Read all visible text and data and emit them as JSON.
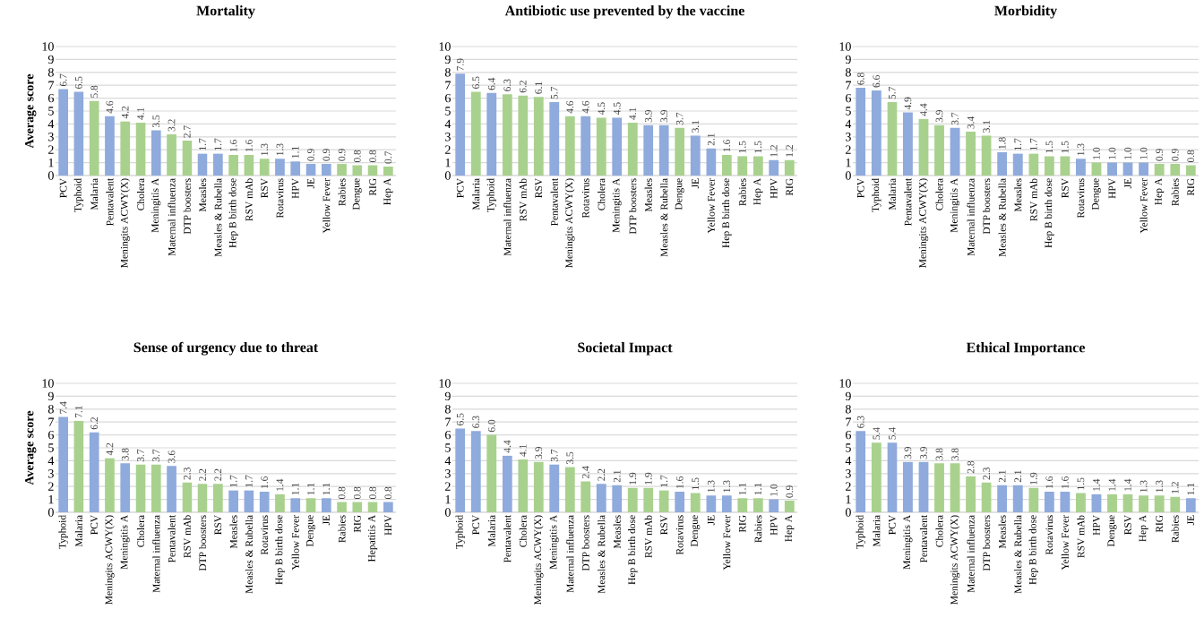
{
  "chart_data": [
    {
      "type": "bar",
      "title": "Mortality",
      "ylabel": "Average score",
      "ylim": [
        0,
        10
      ],
      "yticks": [
        0,
        1,
        2,
        3,
        4,
        5,
        6,
        7,
        8,
        9,
        10
      ],
      "grid": "y",
      "categories": [
        "PCV",
        "Typhoid",
        "Malaria",
        "Pentavalent",
        "Meningits ACWY(X)",
        "Cholera",
        "Meningitis A",
        "Maternal influenza",
        "DTP boosters",
        "Measles",
        "Measles & Rubella",
        "Hep B birth dose",
        "RSV mAb",
        "RSV",
        "Rotavirus",
        "HPV",
        "JE",
        "Yellow Fever",
        "Rabies",
        "Dengue",
        "RIG",
        "Hep A"
      ],
      "values": [
        6.7,
        6.5,
        5.8,
        4.6,
        4.2,
        4.1,
        3.5,
        3.2,
        2.7,
        1.7,
        1.7,
        1.6,
        1.6,
        1.3,
        1.3,
        1.1,
        0.9,
        0.9,
        0.9,
        0.8,
        0.8,
        0.7
      ],
      "value_labels": [
        "6.7",
        "6.5",
        "5.8",
        "4.6",
        "4.2",
        "4.1",
        "3.5",
        "3.2",
        "2.7",
        "1.7",
        "1.7",
        "1.6",
        "1.6",
        "1.3",
        "1.3",
        "1.1",
        "0.9",
        "0.9",
        "0.9",
        "0.8",
        "0.8",
        "0.7"
      ],
      "colors": [
        "#8faadc",
        "#8faadc",
        "#a9d18e",
        "#8faadc",
        "#a9d18e",
        "#a9d18e",
        "#8faadc",
        "#a9d18e",
        "#a9d18e",
        "#8faadc",
        "#8faadc",
        "#a9d18e",
        "#a9d18e",
        "#a9d18e",
        "#8faadc",
        "#8faadc",
        "#8faadc",
        "#8faadc",
        "#a9d18e",
        "#a9d18e",
        "#a9d18e",
        "#a9d18e"
      ]
    },
    {
      "type": "bar",
      "title": "Antibiotic use prevented by the vaccine",
      "ylim": [
        0,
        10
      ],
      "yticks": [
        0,
        1,
        2,
        3,
        4,
        5,
        6,
        7,
        8,
        9,
        10
      ],
      "grid": "y",
      "categories": [
        "PCV",
        "Malaria",
        "Typhoid",
        "Maternal influenza",
        "RSV mAb",
        "RSV",
        "Pentavalent",
        "Meningits ACWY(X)",
        "Rotavirus",
        "Cholera",
        "Meningitis A",
        "DTP boosters",
        "Measles",
        "Measles & Rubella",
        "Dengue",
        "JE",
        "Yellow Fever",
        "Hep B birth dose",
        "Rabies",
        "Hep A",
        "HPV",
        "RIG"
      ],
      "values": [
        7.9,
        6.5,
        6.4,
        6.3,
        6.2,
        6.1,
        5.7,
        4.6,
        4.6,
        4.5,
        4.5,
        4.1,
        3.9,
        3.9,
        3.7,
        3.1,
        2.1,
        1.6,
        1.5,
        1.5,
        1.2,
        1.2
      ],
      "value_labels": [
        "7.9",
        "6.5",
        "6.4",
        "6.3",
        "6.2",
        "6.1",
        "5.7",
        "4.6",
        "4.6",
        "4.5",
        "4.5",
        "4.1",
        "3.9",
        "3.9",
        "3.7",
        "3.1",
        "2.1",
        "1.6",
        "1.5",
        "1.5",
        "1.2",
        "1.2"
      ],
      "colors": [
        "#8faadc",
        "#a9d18e",
        "#8faadc",
        "#a9d18e",
        "#a9d18e",
        "#a9d18e",
        "#8faadc",
        "#a9d18e",
        "#8faadc",
        "#a9d18e",
        "#8faadc",
        "#a9d18e",
        "#8faadc",
        "#8faadc",
        "#a9d18e",
        "#8faadc",
        "#8faadc",
        "#a9d18e",
        "#a9d18e",
        "#a9d18e",
        "#8faadc",
        "#a9d18e"
      ]
    },
    {
      "type": "bar",
      "title": "Morbidity",
      "ylim": [
        0,
        10
      ],
      "yticks": [
        0,
        1,
        2,
        3,
        4,
        5,
        6,
        7,
        8,
        9,
        10
      ],
      "grid": "y",
      "categories": [
        "PCV",
        "Typhoid",
        "Malaria",
        "Pentavalent",
        "Meningits ACWY(X)",
        "Cholera",
        "Meningitis A",
        "Maternal influenza",
        "DTP boosters",
        "Measles & Rubella",
        "Measles",
        "RSV mAb",
        "Hep B birth dose",
        "RSV",
        "Rotavirus",
        "Dengue",
        "HPV",
        "JE",
        "Yellow Fever",
        "Hep A",
        "Rabies",
        "RIG"
      ],
      "values": [
        6.8,
        6.6,
        5.7,
        4.9,
        4.4,
        3.9,
        3.7,
        3.4,
        3.1,
        1.8,
        1.7,
        1.7,
        1.5,
        1.5,
        1.3,
        1.0,
        1.0,
        1.0,
        1.0,
        0.9,
        0.9,
        0.8
      ],
      "value_labels": [
        "6.8",
        "6.6",
        "5.7",
        "4.9",
        "4.4",
        "3.9",
        "3.7",
        "3.4",
        "3.1",
        "1.8",
        "1.7",
        "1.7",
        "1.5",
        "1.5",
        "1.3",
        "1.0",
        "1.0",
        "1.0",
        "1.0",
        "0.9",
        "0.9",
        "0.8"
      ],
      "colors": [
        "#8faadc",
        "#8faadc",
        "#a9d18e",
        "#8faadc",
        "#a9d18e",
        "#a9d18e",
        "#8faadc",
        "#a9d18e",
        "#a9d18e",
        "#8faadc",
        "#8faadc",
        "#a9d18e",
        "#a9d18e",
        "#a9d18e",
        "#8faadc",
        "#a9d18e",
        "#8faadc",
        "#8faadc",
        "#8faadc",
        "#a9d18e",
        "#a9d18e",
        "#a9d18e"
      ]
    },
    {
      "type": "bar",
      "title": "Sense of urgency due to threat",
      "ylabel": "Average score",
      "ylim": [
        0,
        10
      ],
      "yticks": [
        0,
        1,
        2,
        3,
        4,
        5,
        6,
        7,
        8,
        9,
        10
      ],
      "grid": "y",
      "categories": [
        "Typhoid",
        "Malaria",
        "PCV",
        "Meningits ACWY(X)",
        "Meningitis A",
        "Cholera",
        "Maternal influenza",
        "Pentavalent",
        "RSV mAb",
        "DTP boosters",
        "RSV",
        "Measles",
        "Measles & Rubella",
        "Rotavirus",
        "Hep B birth dose",
        "Yellow Fever",
        "Dengue",
        "JE",
        "Rabies",
        "RIG",
        "Hepatitis A",
        "HPV"
      ],
      "values": [
        7.4,
        7.1,
        6.2,
        4.2,
        3.8,
        3.7,
        3.7,
        3.6,
        2.3,
        2.2,
        2.2,
        1.7,
        1.7,
        1.6,
        1.4,
        1.1,
        1.1,
        1.1,
        0.8,
        0.8,
        0.8,
        0.8
      ],
      "value_labels": [
        "7.4",
        "7.1",
        "6.2",
        "4.2",
        "3.8",
        "3.7",
        "3.7",
        "3.6",
        "2.3",
        "2.2",
        "2.2",
        "1.7",
        "1.7",
        "1.6",
        "1.4",
        "1.1",
        "1.1",
        "1.1",
        "0.8",
        "0.8",
        "0.8",
        "0.8"
      ],
      "colors": [
        "#8faadc",
        "#a9d18e",
        "#8faadc",
        "#a9d18e",
        "#8faadc",
        "#a9d18e",
        "#a9d18e",
        "#8faadc",
        "#a9d18e",
        "#a9d18e",
        "#a9d18e",
        "#8faadc",
        "#8faadc",
        "#8faadc",
        "#a9d18e",
        "#8faadc",
        "#a9d18e",
        "#8faadc",
        "#a9d18e",
        "#a9d18e",
        "#a9d18e",
        "#8faadc"
      ]
    },
    {
      "type": "bar",
      "title": "Societal Impact",
      "ylim": [
        0,
        10
      ],
      "yticks": [
        0,
        1,
        2,
        3,
        4,
        5,
        6,
        7,
        8,
        9,
        10
      ],
      "grid": "y",
      "categories": [
        "Typhoid",
        "PCV",
        "Malaria",
        "Pentavalent",
        "Cholera",
        "Meningits ACWY(X)",
        "Meningitis A",
        "Maternal influenza",
        "DTP boosters",
        "Measles & Rubella",
        "Measles",
        "Hep B birth dose",
        "RSV mAb",
        "RSV",
        "Rotavirus",
        "Dengue",
        "JE",
        "Yellow Fever",
        "RIG",
        "Rabies",
        "HPV",
        "Hep A"
      ],
      "values": [
        6.5,
        6.3,
        6.0,
        4.4,
        4.1,
        3.9,
        3.7,
        3.5,
        2.4,
        2.2,
        2.1,
        1.9,
        1.9,
        1.7,
        1.6,
        1.5,
        1.3,
        1.3,
        1.1,
        1.1,
        1.0,
        0.9
      ],
      "value_labels": [
        "6.5",
        "6.3",
        "6.0",
        "4.4",
        "4.1",
        "3.9",
        "3.7",
        "3.5",
        "2.4",
        "2.2",
        "2.1",
        "1.9",
        "1.9",
        "1.7",
        "1.6",
        "1.5",
        "1.3",
        "1.3",
        "1.1",
        "1.1",
        "1.0",
        "0.9"
      ],
      "colors": [
        "#8faadc",
        "#8faadc",
        "#a9d18e",
        "#8faadc",
        "#a9d18e",
        "#a9d18e",
        "#8faadc",
        "#a9d18e",
        "#a9d18e",
        "#8faadc",
        "#8faadc",
        "#a9d18e",
        "#a9d18e",
        "#a9d18e",
        "#8faadc",
        "#a9d18e",
        "#8faadc",
        "#8faadc",
        "#a9d18e",
        "#a9d18e",
        "#8faadc",
        "#a9d18e"
      ]
    },
    {
      "type": "bar",
      "title": "Ethical Importance",
      "ylim": [
        0,
        10
      ],
      "yticks": [
        0,
        1,
        2,
        3,
        4,
        5,
        6,
        7,
        8,
        9,
        10
      ],
      "grid": "y",
      "categories": [
        "Typhoid",
        "Malaria",
        "PCV",
        "Meningitis A",
        "Pentavalent",
        "Cholera",
        "Meningits ACWY(X)",
        "Maternal influenza",
        "DTP boosters",
        "Measles",
        "Measles & Rubella",
        "Hep B birth dose",
        "Rotavirus",
        "Yellow Fever",
        "RSV mAb",
        "HPV",
        "Dengue",
        "RSV",
        "Hep A",
        "RIG",
        "Rabies",
        "JE"
      ],
      "values": [
        6.3,
        5.4,
        5.4,
        3.9,
        3.9,
        3.8,
        3.8,
        2.8,
        2.3,
        2.1,
        2.1,
        1.9,
        1.6,
        1.6,
        1.5,
        1.4,
        1.4,
        1.4,
        1.3,
        1.3,
        1.2,
        1.1
      ],
      "value_labels": [
        "6.3",
        "5.4",
        "5.4",
        "3.9",
        "3.9",
        "3.8",
        "3.8",
        "2.8",
        "2.3",
        "2.1",
        "2.1",
        "1.9",
        "1.6",
        "1.6",
        "1.5",
        "1.4",
        "1.4",
        "1.4",
        "1.3",
        "1.3",
        "1.2",
        "1.1"
      ],
      "colors": [
        "#8faadc",
        "#a9d18e",
        "#8faadc",
        "#8faadc",
        "#8faadc",
        "#a9d18e",
        "#a9d18e",
        "#a9d18e",
        "#a9d18e",
        "#8faadc",
        "#8faadc",
        "#a9d18e",
        "#8faadc",
        "#8faadc",
        "#a9d18e",
        "#8faadc",
        "#a9d18e",
        "#a9d18e",
        "#a9d18e",
        "#a9d18e",
        "#a9d18e",
        "#8faadc"
      ]
    }
  ]
}
